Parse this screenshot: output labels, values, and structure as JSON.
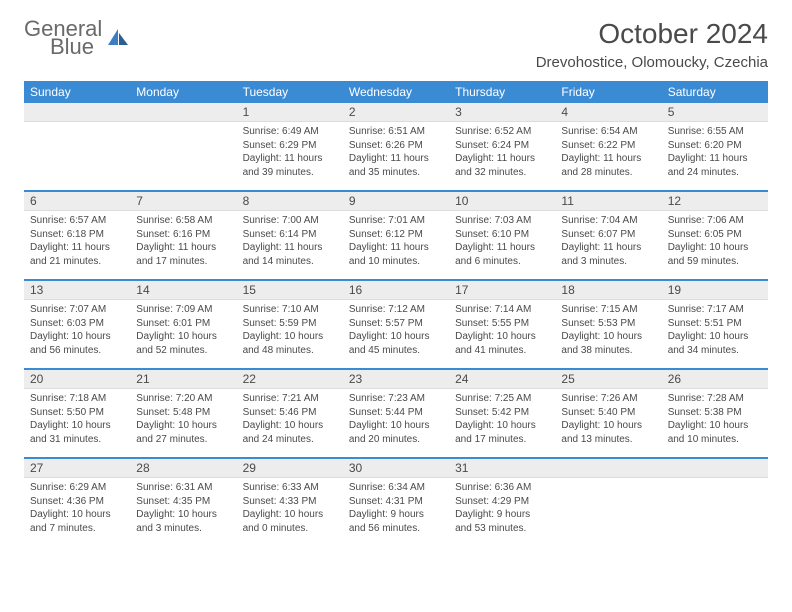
{
  "brand": {
    "line1": "General",
    "line2": "Blue"
  },
  "title": "October 2024",
  "location": "Drevohostice, Olomoucky, Czechia",
  "colors": {
    "header_bg": "#3b8bd4",
    "daynum_bg": "#ededed",
    "text": "#4a4a4a",
    "brand_blue": "#3b7ec4"
  },
  "day_labels": [
    "Sunday",
    "Monday",
    "Tuesday",
    "Wednesday",
    "Thursday",
    "Friday",
    "Saturday"
  ],
  "weeks": [
    [
      {
        "n": "",
        "sr": "",
        "ss": "",
        "dl": ""
      },
      {
        "n": "",
        "sr": "",
        "ss": "",
        "dl": ""
      },
      {
        "n": "1",
        "sr": "6:49 AM",
        "ss": "6:29 PM",
        "dl": "11 hours and 39 minutes."
      },
      {
        "n": "2",
        "sr": "6:51 AM",
        "ss": "6:26 PM",
        "dl": "11 hours and 35 minutes."
      },
      {
        "n": "3",
        "sr": "6:52 AM",
        "ss": "6:24 PM",
        "dl": "11 hours and 32 minutes."
      },
      {
        "n": "4",
        "sr": "6:54 AM",
        "ss": "6:22 PM",
        "dl": "11 hours and 28 minutes."
      },
      {
        "n": "5",
        "sr": "6:55 AM",
        "ss": "6:20 PM",
        "dl": "11 hours and 24 minutes."
      }
    ],
    [
      {
        "n": "6",
        "sr": "6:57 AM",
        "ss": "6:18 PM",
        "dl": "11 hours and 21 minutes."
      },
      {
        "n": "7",
        "sr": "6:58 AM",
        "ss": "6:16 PM",
        "dl": "11 hours and 17 minutes."
      },
      {
        "n": "8",
        "sr": "7:00 AM",
        "ss": "6:14 PM",
        "dl": "11 hours and 14 minutes."
      },
      {
        "n": "9",
        "sr": "7:01 AM",
        "ss": "6:12 PM",
        "dl": "11 hours and 10 minutes."
      },
      {
        "n": "10",
        "sr": "7:03 AM",
        "ss": "6:10 PM",
        "dl": "11 hours and 6 minutes."
      },
      {
        "n": "11",
        "sr": "7:04 AM",
        "ss": "6:07 PM",
        "dl": "11 hours and 3 minutes."
      },
      {
        "n": "12",
        "sr": "7:06 AM",
        "ss": "6:05 PM",
        "dl": "10 hours and 59 minutes."
      }
    ],
    [
      {
        "n": "13",
        "sr": "7:07 AM",
        "ss": "6:03 PM",
        "dl": "10 hours and 56 minutes."
      },
      {
        "n": "14",
        "sr": "7:09 AM",
        "ss": "6:01 PM",
        "dl": "10 hours and 52 minutes."
      },
      {
        "n": "15",
        "sr": "7:10 AM",
        "ss": "5:59 PM",
        "dl": "10 hours and 48 minutes."
      },
      {
        "n": "16",
        "sr": "7:12 AM",
        "ss": "5:57 PM",
        "dl": "10 hours and 45 minutes."
      },
      {
        "n": "17",
        "sr": "7:14 AM",
        "ss": "5:55 PM",
        "dl": "10 hours and 41 minutes."
      },
      {
        "n": "18",
        "sr": "7:15 AM",
        "ss": "5:53 PM",
        "dl": "10 hours and 38 minutes."
      },
      {
        "n": "19",
        "sr": "7:17 AM",
        "ss": "5:51 PM",
        "dl": "10 hours and 34 minutes."
      }
    ],
    [
      {
        "n": "20",
        "sr": "7:18 AM",
        "ss": "5:50 PM",
        "dl": "10 hours and 31 minutes."
      },
      {
        "n": "21",
        "sr": "7:20 AM",
        "ss": "5:48 PM",
        "dl": "10 hours and 27 minutes."
      },
      {
        "n": "22",
        "sr": "7:21 AM",
        "ss": "5:46 PM",
        "dl": "10 hours and 24 minutes."
      },
      {
        "n": "23",
        "sr": "7:23 AM",
        "ss": "5:44 PM",
        "dl": "10 hours and 20 minutes."
      },
      {
        "n": "24",
        "sr": "7:25 AM",
        "ss": "5:42 PM",
        "dl": "10 hours and 17 minutes."
      },
      {
        "n": "25",
        "sr": "7:26 AM",
        "ss": "5:40 PM",
        "dl": "10 hours and 13 minutes."
      },
      {
        "n": "26",
        "sr": "7:28 AM",
        "ss": "5:38 PM",
        "dl": "10 hours and 10 minutes."
      }
    ],
    [
      {
        "n": "27",
        "sr": "6:29 AM",
        "ss": "4:36 PM",
        "dl": "10 hours and 7 minutes."
      },
      {
        "n": "28",
        "sr": "6:31 AM",
        "ss": "4:35 PM",
        "dl": "10 hours and 3 minutes."
      },
      {
        "n": "29",
        "sr": "6:33 AM",
        "ss": "4:33 PM",
        "dl": "10 hours and 0 minutes."
      },
      {
        "n": "30",
        "sr": "6:34 AM",
        "ss": "4:31 PM",
        "dl": "9 hours and 56 minutes."
      },
      {
        "n": "31",
        "sr": "6:36 AM",
        "ss": "4:29 PM",
        "dl": "9 hours and 53 minutes."
      },
      {
        "n": "",
        "sr": "",
        "ss": "",
        "dl": ""
      },
      {
        "n": "",
        "sr": "",
        "ss": "",
        "dl": ""
      }
    ]
  ],
  "labels": {
    "sunrise": "Sunrise:",
    "sunset": "Sunset:",
    "daylight": "Daylight:"
  }
}
